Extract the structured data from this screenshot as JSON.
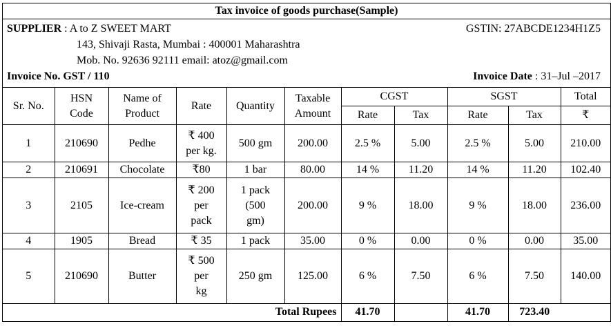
{
  "title": "Tax invoice of goods purchase(Sample)",
  "supplier": {
    "label": "SUPPLIER",
    "name": ": A to Z SWEET MART",
    "address": "143, Shivaji Rasta, Mumbai : 400001 Maharashtra",
    "contact": "Mob. No. 92636 92111 email: atoz@gmail.com",
    "gstin": "GSTIN: 27ABCDE1234H1Z5"
  },
  "invoice": {
    "no_label": "Invoice No. GST / 110",
    "date_label": "Invoice Date",
    "date_value": ": 31–Jul –2017"
  },
  "headers": {
    "sr": "Sr. No.",
    "hsn": [
      "HSN",
      "Code"
    ],
    "name": [
      "Name of",
      "Product"
    ],
    "rate": "Rate",
    "qty": "Quantity",
    "taxable": [
      "Taxable",
      "Amount"
    ],
    "cgst": "CGST",
    "sgst": "SGST",
    "total": "Total",
    "sub_rate": "Rate",
    "sub_tax": "Tax",
    "rupee": "₹"
  },
  "rows": [
    {
      "sr": "1",
      "hsn": "210690",
      "name": "Pedhe",
      "rate": [
        "₹ 400",
        "per kg."
      ],
      "qty": [
        "500 gm"
      ],
      "taxable": "200.00",
      "cgst_rate": "2.5 %",
      "cgst_tax": "5.00",
      "sgst_rate": "2.5 %",
      "sgst_tax": "5.00",
      "total": "210.00"
    },
    {
      "sr": "2",
      "hsn": "210691",
      "name": "Chocolate",
      "rate": [
        "₹80"
      ],
      "qty": [
        "1 bar"
      ],
      "taxable": "80.00",
      "cgst_rate": "14 %",
      "cgst_tax": "11.20",
      "sgst_rate": "14 %",
      "sgst_tax": "11.20",
      "total": "102.40"
    },
    {
      "sr": "3",
      "hsn": "2105",
      "name": "Ice-cream",
      "rate": [
        "₹ 200",
        "per",
        "pack"
      ],
      "qty": [
        "1 pack",
        "(500",
        "gm)"
      ],
      "taxable": "200.00",
      "cgst_rate": "9 %",
      "cgst_tax": "18.00",
      "sgst_rate": "9 %",
      "sgst_tax": "18.00",
      "total": "236.00"
    },
    {
      "sr": "4",
      "hsn": "1905",
      "name": "Bread",
      "rate": [
        "₹ 35"
      ],
      "qty": [
        "1 pack"
      ],
      "taxable": "35.00",
      "cgst_rate": "0 %",
      "cgst_tax": "0.00",
      "sgst_rate": "0 %",
      "sgst_tax": "0.00",
      "total": "35.00"
    },
    {
      "sr": "5",
      "hsn": "210690",
      "name": "Butter",
      "rate": [
        "₹ 500",
        "per",
        "kg"
      ],
      "qty": [
        "250 gm"
      ],
      "taxable": "125.00",
      "cgst_rate": "6 %",
      "cgst_tax": "7.50",
      "sgst_rate": "6 %",
      "sgst_tax": "7.50",
      "total": "140.00"
    }
  ],
  "totals": {
    "label": "Total Rupees",
    "cgst": "41.70",
    "sgst": "41.70",
    "grand": "723.40"
  }
}
